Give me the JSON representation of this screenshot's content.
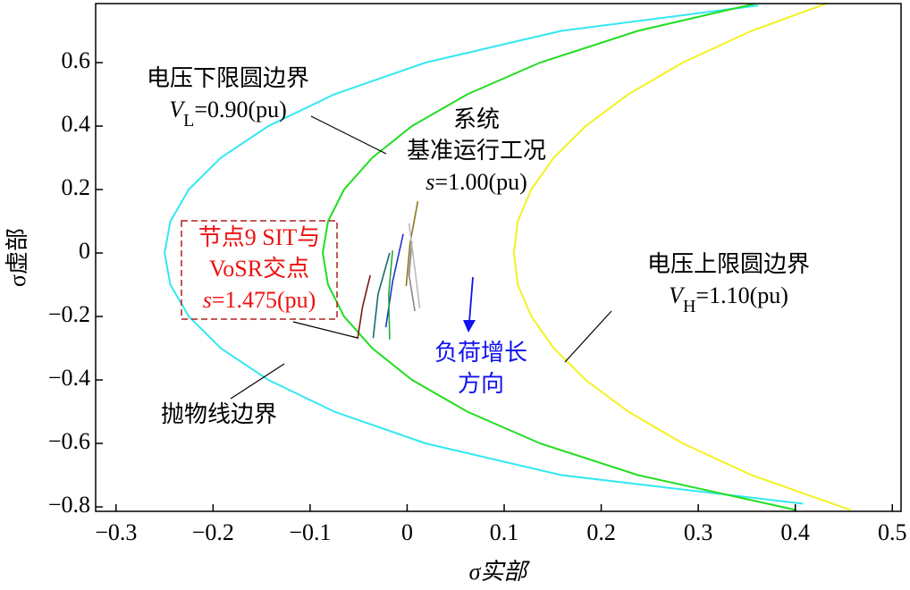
{
  "chart_data": {
    "type": "line",
    "xlabel": "σ实部",
    "ylabel": "σ虚部",
    "xlim": [
      -0.321,
      0.509
    ],
    "ylim": [
      -0.814,
      0.786
    ],
    "xticks": [
      {
        "value": -0.3,
        "label": "−0.3"
      },
      {
        "value": -0.2,
        "label": "−0.2"
      },
      {
        "value": -0.1,
        "label": "−0.1"
      },
      0,
      0.1,
      0.2,
      0.3,
      0.4,
      0.5
    ],
    "yticks": [
      {
        "value": -0.8,
        "label": "−0.8"
      },
      {
        "value": -0.6,
        "label": "−0.6"
      },
      {
        "value": -0.4,
        "label": "−0.4"
      },
      {
        "value": -0.2,
        "label": "−0.2"
      },
      0,
      0.2,
      0.4,
      0.6
    ],
    "series": [
      {
        "color": "#33e8f2",
        "x": [
          0.408,
          0.159,
          0.019,
          -0.075,
          -0.143,
          -0.192,
          -0.225,
          -0.244,
          -0.25,
          -0.244,
          -0.225,
          -0.192,
          -0.143,
          -0.075,
          0.019,
          0.159,
          0.362
        ],
        "y": [
          -0.79,
          -0.7,
          -0.6,
          -0.5,
          -0.4,
          -0.3,
          -0.2,
          -0.1,
          0,
          0.1,
          0.2,
          0.3,
          0.4,
          0.5,
          0.6,
          0.7,
          0.78
        ]
      },
      {
        "color": "#22dd22",
        "x": [
          0.401,
          0.238,
          0.137,
          0.062,
          0.005,
          -0.036,
          -0.065,
          -0.0815,
          -0.087,
          -0.0815,
          -0.065,
          -0.036,
          0.005,
          0.062,
          0.137,
          0.238,
          0.359
        ],
        "y": [
          -0.81,
          -0.7,
          -0.6,
          -0.5,
          -0.4,
          -0.3,
          -0.2,
          -0.1,
          0,
          0.1,
          0.2,
          0.3,
          0.4,
          0.5,
          0.6,
          0.7,
          0.786
        ]
      },
      {
        "color": "#f2f222",
        "x": [
          0.457,
          0.355,
          0.284,
          0.228,
          0.184,
          0.151,
          0.128,
          0.114,
          0.11,
          0.114,
          0.128,
          0.151,
          0.184,
          0.228,
          0.284,
          0.355,
          0.432
        ],
        "y": [
          -0.81,
          -0.7,
          -0.6,
          -0.5,
          -0.4,
          -0.3,
          -0.2,
          -0.1,
          0,
          0.1,
          0.2,
          0.3,
          0.4,
          0.5,
          0.6,
          0.7,
          0.786
        ]
      },
      {
        "color": "#7a1a10",
        "x": [
          -0.038,
          -0.046,
          -0.051
        ],
        "y": [
          -0.07,
          -0.17,
          -0.27
        ]
      },
      {
        "color": "#1e6a6a",
        "x": [
          -0.018,
          -0.03,
          -0.035
        ],
        "y": [
          0,
          -0.13,
          -0.268
        ]
      },
      {
        "color": "#2233cc",
        "x": [
          -0.004,
          -0.015,
          -0.022
        ],
        "y": [
          0.06,
          -0.09,
          -0.234
        ]
      },
      {
        "color": "#22aa44",
        "x": [
          -0.015,
          -0.019,
          -0.018
        ],
        "y": [
          0.008,
          -0.13,
          -0.273
        ]
      },
      {
        "color": "#8a7a22",
        "x": [
          0.011,
          0.003,
          -0.001
        ],
        "y": [
          0.163,
          0.03,
          -0.104
        ]
      },
      {
        "color": "#888888",
        "x": [
          0.005,
          0.002,
          0.008
        ],
        "y": [
          0.037,
          -0.07,
          -0.183
        ]
      },
      {
        "color": "#bbbbbb",
        "x": [
          0.002,
          0.008,
          0.013
        ],
        "y": [
          0.093,
          -0.05,
          -0.174
        ]
      }
    ],
    "annotations": [
      {
        "color": "#000000",
        "lines": [
          [
            {
              "text": "电压下限圆边界"
            }
          ],
          [
            {
              "text": "V",
              "style": "italic"
            },
            {
              "text": "L",
              "style": "sub"
            },
            {
              "text": "=0.90(pu)"
            }
          ]
        ]
      },
      {
        "color": "#000000",
        "lines": [
          [
            {
              "text": "系统"
            }
          ],
          [
            {
              "text": "基准运行工况"
            }
          ],
          [
            {
              "text": "s",
              "style": "italic"
            },
            {
              "text": "=1.00(pu)"
            }
          ]
        ]
      },
      {
        "color": "#ee1111",
        "lines": [
          [
            {
              "text": "节点9 SIT与"
            }
          ],
          [
            {
              "text": "VoSR交点"
            }
          ],
          [
            {
              "text": "s",
              "style": "italic"
            },
            {
              "text": "=1.475(pu)"
            }
          ]
        ]
      },
      {
        "color": "#000000",
        "lines": [
          [
            {
              "text": "电压上限圆边界"
            }
          ],
          [
            {
              "text": "V",
              "style": "italic"
            },
            {
              "text": "H",
              "style": "sub"
            },
            {
              "text": "=1.10(pu)"
            }
          ]
        ]
      },
      {
        "color": "#1111ee",
        "lines": [
          [
            {
              "text": "负荷增长"
            }
          ],
          [
            {
              "text": "方向"
            }
          ]
        ]
      },
      {
        "color": "#000000",
        "lines": [
          [
            {
              "text": "抛物线边界"
            }
          ]
        ]
      }
    ]
  }
}
